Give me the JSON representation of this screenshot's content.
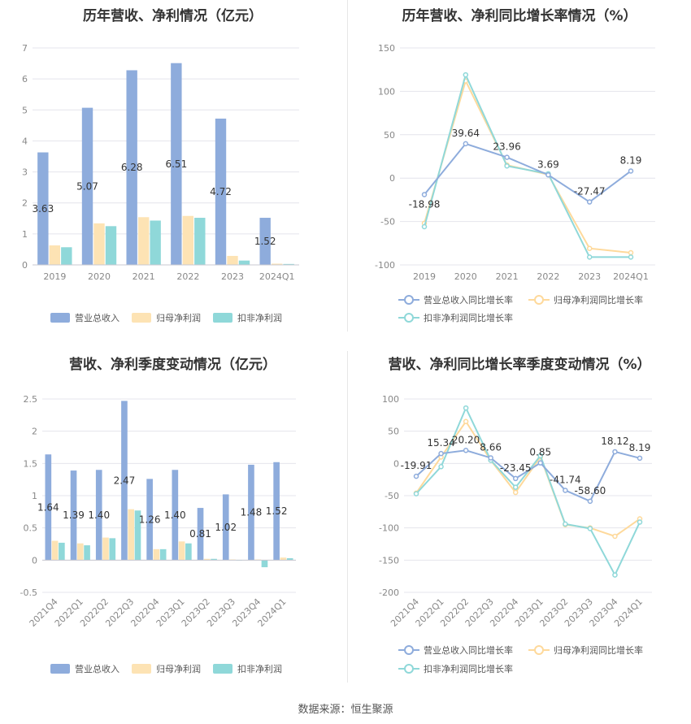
{
  "source": "数据来源：恒生聚源",
  "colors": {
    "revenue": "#8eacdc",
    "parent_np": "#fde3b4",
    "deducted_np": "#8fd8d9",
    "revenue_line": "#8eacdc",
    "parent_line": "#fed99b",
    "deducted_line": "#8fd8d9"
  },
  "chart_data": [
    {
      "id": "annual-values",
      "type": "bar",
      "title": "历年营收、净利情况（亿元）",
      "categories": [
        "2019",
        "2020",
        "2021",
        "2022",
        "2023",
        "2024Q1"
      ],
      "series": [
        {
          "name": "营业总收入",
          "values": [
            3.63,
            5.07,
            6.28,
            6.51,
            4.72,
            1.52
          ]
        },
        {
          "name": "归母净利润",
          "values": [
            0.63,
            1.34,
            1.54,
            1.58,
            0.29,
            0.04
          ]
        },
        {
          "name": "扣非净利润",
          "values": [
            0.57,
            1.25,
            1.43,
            1.52,
            0.14,
            0.03
          ]
        }
      ],
      "data_labels": [
        "3.63",
        "5.07",
        "6.28",
        "6.51",
        "4.72",
        "1.52"
      ],
      "ylim": [
        0,
        7
      ],
      "yticks": [
        "0",
        "1",
        "2",
        "3",
        "4",
        "5",
        "6",
        "7"
      ],
      "legend": "bottom",
      "grid": true
    },
    {
      "id": "annual-growth",
      "type": "line",
      "title": "历年营收、净利同比增长率情况（%）",
      "categories": [
        "2019",
        "2020",
        "2021",
        "2022",
        "2023",
        "2024Q1"
      ],
      "series": [
        {
          "name": "营业总收入同比增长率",
          "values": [
            -18.98,
            39.64,
            23.96,
            3.69,
            -27.47,
            8.19
          ]
        },
        {
          "name": "归母净利润同比增长率",
          "values": [
            -52,
            112,
            15,
            4,
            -81,
            -86
          ]
        },
        {
          "name": "扣非净利润同比增长率",
          "values": [
            -56,
            119,
            14,
            5,
            -91,
            -91
          ]
        }
      ],
      "data_labels": [
        "-18.98",
        "39.64",
        "23.96",
        "3.69",
        "-27.47",
        "8.19"
      ],
      "ylim": [
        -100,
        150
      ],
      "yticks": [
        "-100",
        "-50",
        "0",
        "50",
        "100",
        "150"
      ],
      "legend": "bottom",
      "grid": true
    },
    {
      "id": "quarterly-values",
      "type": "bar",
      "title": "营收、净利季度变动情况（亿元）",
      "categories": [
        "2021Q4",
        "2022Q1",
        "2022Q2",
        "2022Q3",
        "2022Q4",
        "2023Q1",
        "2023Q2",
        "2023Q3",
        "2023Q4",
        "2024Q1"
      ],
      "series": [
        {
          "name": "营业总收入",
          "values": [
            1.64,
            1.39,
            1.4,
            2.47,
            1.26,
            1.4,
            0.81,
            1.02,
            1.48,
            1.52
          ]
        },
        {
          "name": "归母净利润",
          "values": [
            0.3,
            0.26,
            0.35,
            0.79,
            0.17,
            0.29,
            0.02,
            0.01,
            0.01,
            0.04
          ]
        },
        {
          "name": "扣非净利润",
          "values": [
            0.27,
            0.23,
            0.34,
            0.77,
            0.17,
            0.26,
            0.02,
            0.0,
            -0.11,
            0.03
          ]
        }
      ],
      "data_labels": [
        "1.64",
        "1.39",
        "1.40",
        "2.47",
        "1.26",
        "1.40",
        "0.81",
        "1.02",
        "1.48",
        "1.52"
      ],
      "ylim": [
        -0.5,
        2.5
      ],
      "yticks": [
        "-0.5",
        "0",
        "0.5",
        "1",
        "1.5",
        "2",
        "2.5"
      ],
      "legend": "bottom",
      "grid": true
    },
    {
      "id": "quarterly-growth",
      "type": "line",
      "title": "营收、净利同比增长率季度变动情况（%）",
      "categories": [
        "2021Q4",
        "2022Q1",
        "2022Q2",
        "2022Q3",
        "2022Q4",
        "2023Q1",
        "2023Q2",
        "2023Q3",
        "2023Q4",
        "2024Q1"
      ],
      "series": [
        {
          "name": "营业总收入同比增长率",
          "values": [
            -19.91,
            15.34,
            20.2,
            8.66,
            -23.45,
            0.85,
            -41.74,
            -58.6,
            18.12,
            8.19
          ]
        },
        {
          "name": "归母净利润同比增长率",
          "values": [
            -46,
            10,
            65,
            5,
            -45,
            10,
            -95,
            -100,
            -113,
            -86
          ]
        },
        {
          "name": "扣非净利润同比增长率",
          "values": [
            -47,
            -5,
            86,
            5,
            -37,
            12,
            -94,
            -101,
            -173,
            -91
          ]
        }
      ],
      "data_labels": [
        "-19.91",
        "15.34",
        "20.20",
        "8.66",
        "-23.45",
        "0.85",
        "-41.74",
        "-58.60",
        "18.12",
        "8.19"
      ],
      "ylim": [
        -200,
        100
      ],
      "yticks": [
        "-200",
        "-150",
        "-100",
        "-50",
        "0",
        "50",
        "100"
      ],
      "legend": "bottom",
      "grid": true
    }
  ]
}
